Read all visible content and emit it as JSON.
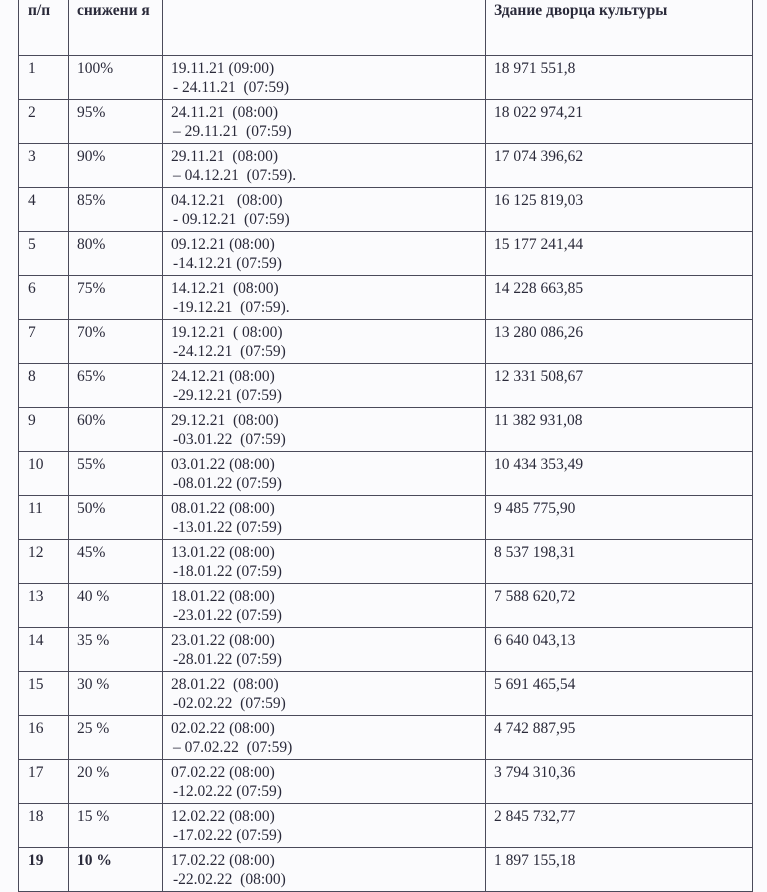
{
  "headers": [
    "п/п",
    "снижени я",
    "",
    "Здание  дворца культуры"
  ],
  "rows": [
    {
      "n": "1",
      "pct": "100%",
      "from": "19.11.21 (09:00)",
      "to": "- 24.11.21  (07:59)",
      "price": "18 971 551,8"
    },
    {
      "n": "2",
      "pct": "95%",
      "from": "24.11.21  (08:00)",
      "to": "– 29.11.21  (07:59)",
      "price": "18 022 974,21"
    },
    {
      "n": "3",
      "pct": "90%",
      "from": "29.11.21  (08:00)",
      "to": "– 04.12.21  (07:59).",
      "price": "17 074 396,62"
    },
    {
      "n": "4",
      "pct": "85%",
      "from": "04.12.21   (08:00)",
      "to": "- 09.12.21  (07:59)",
      "price": "16 125 819,03"
    },
    {
      "n": "5",
      "pct": "80%",
      "from": "09.12.21 (08:00)",
      "to": "-14.12.21 (07:59)",
      "price": "15 177 241,44"
    },
    {
      "n": "6",
      "pct": "75%",
      "from": "14.12.21  (08:00)",
      "to": "-19.12.21  (07:59).",
      "price": "14 228 663,85"
    },
    {
      "n": "7",
      "pct": "70%",
      "from": "19.12.21  ( 08:00)",
      "to": "-24.12.21  (07:59)",
      "price": "13 280 086,26"
    },
    {
      "n": "8",
      "pct": "65%",
      "from": "24.12.21 (08:00)",
      "to": "-29.12.21 (07:59)",
      "price": "12 331 508,67"
    },
    {
      "n": "9",
      "pct": "60%",
      "from": "29.12.21  (08:00)",
      "to": "-03.01.22  (07:59)",
      "price": "11 382 931,08"
    },
    {
      "n": "10",
      "pct": "55%",
      "from": "03.01.22 (08:00)",
      "to": "-08.01.22 (07:59)",
      "price": "10 434 353,49"
    },
    {
      "n": "11",
      "pct": "50%",
      "from": "08.01.22 (08:00)",
      "to": "-13.01.22 (07:59)",
      "price": "9 485 775,90"
    },
    {
      "n": "12",
      "pct": "45%",
      "from": "13.01.22 (08:00)",
      "to": "-18.01.22 (07:59)",
      "price": "8 537 198,31"
    },
    {
      "n": "13",
      "pct": "40 %",
      "from": "18.01.22 (08:00)",
      "to": "-23.01.22 (07:59)",
      "price": "7 588 620,72"
    },
    {
      "n": "14",
      "pct": "35 %",
      "from": "23.01.22 (08:00)",
      "to": "-28.01.22 (07:59)",
      "price": "6 640 043,13"
    },
    {
      "n": "15",
      "pct": "30 %",
      "from": "28.01.22  (08:00)",
      "to": "-02.02.22  (07:59)",
      "price": "5 691 465,54"
    },
    {
      "n": "16",
      "pct": "25 %",
      "from": "02.02.22 (08:00)",
      "to": "– 07.02.22  (07:59)",
      "price": "4 742 887,95"
    },
    {
      "n": "17",
      "pct": "20 %",
      "from": "07.02.22 (08:00)",
      "to": "-12.02.22 (07:59)",
      "price": "3 794 310,36"
    },
    {
      "n": "18",
      "pct": "15 %",
      "from": "12.02.22 (08:00)",
      "to": "-17.02.22 (07:59)",
      "price": "2 845 732,77"
    },
    {
      "n": "19",
      "pct": "10 %",
      "from": "17.02.22 (08:00)",
      "to": "-22.02.22  (08:00)",
      "price": "1 897 155,18"
    }
  ]
}
